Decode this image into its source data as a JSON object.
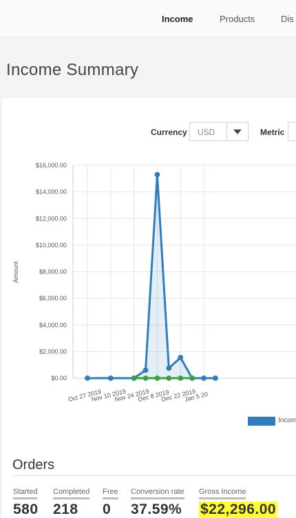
{
  "nav": {
    "items": [
      "Income",
      "Products",
      "Dis"
    ],
    "active": "Income"
  },
  "page": {
    "title": "Income Summary"
  },
  "filters": {
    "currency_label": "Currency",
    "currency_value": "USD",
    "metric_label": "Metric"
  },
  "chart_data": {
    "type": "line",
    "title": "",
    "ylabel": "Amount",
    "xlabel": "",
    "x_ticks": [
      "Oct 27 2019",
      "Nov 10 2019",
      "Nov 24 2019",
      "Dec 8 2019",
      "Dec 22 2019",
      "Jan 5 20"
    ],
    "y_ticks": [
      "$16,000.00",
      "$14,000.00",
      "$12,000.00",
      "$10,000.00",
      "$8,000.00",
      "$6,000.00",
      "$4,000.00",
      "$2,000.00",
      "$0.00"
    ],
    "ylim": [
      0,
      16000
    ],
    "grid": true,
    "legend_position": "bottom-right",
    "series": [
      {
        "name": "Incom",
        "color": "#2f7dbf",
        "fill": true,
        "points": [
          [
            "Oct 27 2019",
            0
          ],
          [
            "Nov 10 2019",
            0
          ],
          [
            "Nov 24 2019",
            0
          ],
          [
            "Dec 1 2019",
            600
          ],
          [
            "Dec 8 2019",
            15300
          ],
          [
            "Dec 15 2019",
            750
          ],
          [
            "Dec 22 2019",
            1550
          ],
          [
            "Dec 29 2019",
            0
          ],
          [
            "Jan 5 2020",
            0
          ],
          [
            "Jan 12 2020",
            0
          ]
        ]
      },
      {
        "name": "",
        "color": "#3aa046",
        "fill": false,
        "points": [
          [
            "Nov 24 2019",
            0
          ],
          [
            "Dec 1 2019",
            0
          ],
          [
            "Dec 8 2019",
            0
          ],
          [
            "Dec 15 2019",
            0
          ],
          [
            "Dec 22 2019",
            0
          ],
          [
            "Dec 29 2019",
            0
          ]
        ]
      }
    ]
  },
  "legend": {
    "label": "Incom"
  },
  "orders": {
    "title": "Orders",
    "stats": [
      {
        "label": "Started",
        "value": "580"
      },
      {
        "label": "Completed",
        "value": "218"
      },
      {
        "label": "Free",
        "value": "0"
      },
      {
        "label": "Conversion rate",
        "value": "37.59%"
      },
      {
        "label": "Gross Income",
        "value": "$22,296.00"
      }
    ]
  }
}
